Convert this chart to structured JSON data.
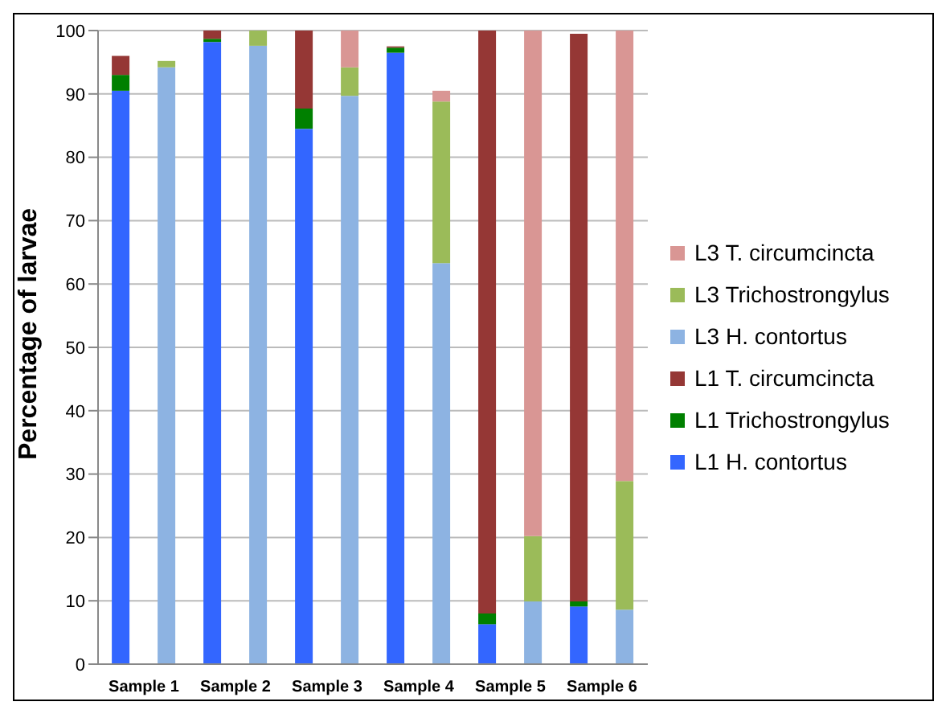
{
  "chart_data": {
    "type": "bar",
    "ylabel": "Percentage of larvae",
    "categories": [
      "Sample 1",
      null,
      "Sample 2",
      null,
      "Sample 3",
      null,
      "Sample 4",
      null,
      "Sample 5",
      null,
      "Sample 6",
      null
    ],
    "stacked": true,
    "series": [
      {
        "name": "L1 H. contortus",
        "color": "#3366ff",
        "values": [
          90.5,
          null,
          98.2,
          null,
          84.5,
          null,
          96.5,
          null,
          6.3,
          null,
          9.1,
          null
        ]
      },
      {
        "name": "L1 Trichostrongylus",
        "color": "#008000",
        "values": [
          2.5,
          null,
          0.5,
          null,
          3.2,
          null,
          0.8,
          null,
          1.7,
          null,
          0.8,
          null
        ]
      },
      {
        "name": "L1 T. circumcincta",
        "color": "#953735",
        "values": [
          3,
          null,
          1.3,
          null,
          12.3,
          null,
          0.2,
          null,
          92,
          null,
          89.6,
          null
        ]
      },
      {
        "name": "L3 H. contortus",
        "color": "#8db3e2",
        "values": [
          null,
          94.2,
          null,
          97.6,
          null,
          89.7,
          null,
          63.3,
          null,
          9.9,
          null,
          8.6
        ]
      },
      {
        "name": "L3 Trichostrongylus",
        "color": "#9bbb59",
        "values": [
          null,
          1,
          null,
          2.4,
          null,
          4.5,
          null,
          25.5,
          null,
          10.3,
          null,
          20.3
        ]
      },
      {
        "name": "L3 T. circumcincta",
        "color": "#d99694",
        "values": [
          null,
          null,
          null,
          null,
          null,
          5.8,
          null,
          1.7,
          null,
          79.8,
          null,
          71.1
        ]
      }
    ],
    "ylim": [
      0,
      100
    ],
    "yticks": [
      0,
      10,
      20,
      30,
      40,
      50,
      60,
      70,
      80,
      90,
      100
    ],
    "grid": "y",
    "legend": "right"
  }
}
